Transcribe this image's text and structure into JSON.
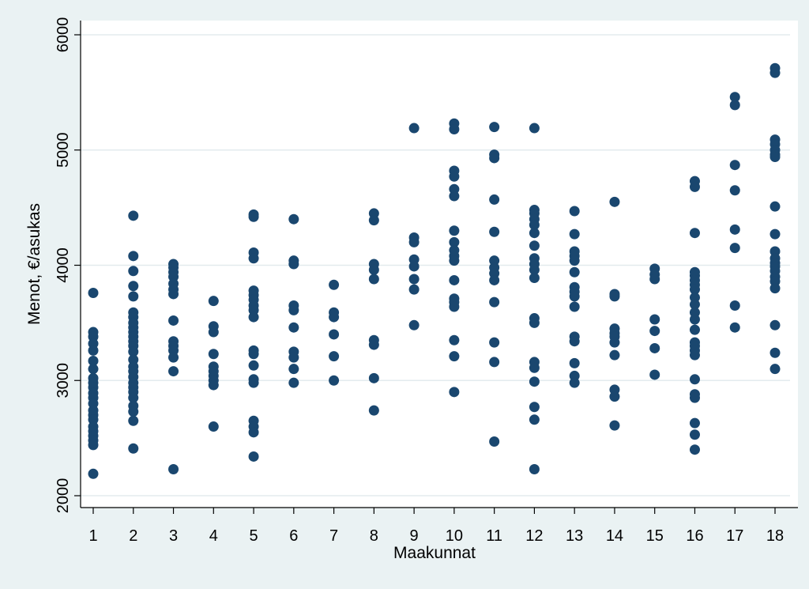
{
  "colors": {
    "background": "#eaf2f3",
    "plot_bg": "#ffffff",
    "points": "#1a476f",
    "grid": "#e3ebee"
  },
  "chart_data": {
    "type": "scatter",
    "title": "",
    "xlabel": "Maakunnat",
    "ylabel": "Menot, €/asukas",
    "xlim": [
      1,
      18
    ],
    "ylim": [
      2000,
      6000
    ],
    "xticks": [
      1,
      2,
      3,
      4,
      5,
      6,
      7,
      8,
      9,
      10,
      11,
      12,
      13,
      14,
      15,
      16,
      17,
      18
    ],
    "yticks": [
      2000,
      3000,
      4000,
      5000,
      6000
    ],
    "grid": true,
    "legend": "none",
    "points": [
      [
        1,
        3760
      ],
      [
        1,
        3420
      ],
      [
        1,
        3380
      ],
      [
        1,
        3320
      ],
      [
        1,
        3260
      ],
      [
        1,
        3170
      ],
      [
        1,
        3100
      ],
      [
        1,
        3020
      ],
      [
        1,
        2980
      ],
      [
        1,
        2940
      ],
      [
        1,
        2890
      ],
      [
        1,
        2850
      ],
      [
        1,
        2800
      ],
      [
        1,
        2740
      ],
      [
        1,
        2700
      ],
      [
        1,
        2660
      ],
      [
        1,
        2600
      ],
      [
        1,
        2560
      ],
      [
        1,
        2520
      ],
      [
        1,
        2480
      ],
      [
        1,
        2440
      ],
      [
        1,
        2190
      ],
      [
        2,
        4430
      ],
      [
        2,
        4080
      ],
      [
        2,
        3950
      ],
      [
        2,
        3820
      ],
      [
        2,
        3730
      ],
      [
        2,
        3590
      ],
      [
        2,
        3550
      ],
      [
        2,
        3500
      ],
      [
        2,
        3460
      ],
      [
        2,
        3420
      ],
      [
        2,
        3380
      ],
      [
        2,
        3340
      ],
      [
        2,
        3300
      ],
      [
        2,
        3250
      ],
      [
        2,
        3180
      ],
      [
        2,
        3120
      ],
      [
        2,
        3080
      ],
      [
        2,
        3030
      ],
      [
        2,
        2980
      ],
      [
        2,
        2940
      ],
      [
        2,
        2900
      ],
      [
        2,
        2850
      ],
      [
        2,
        2780
      ],
      [
        2,
        2730
      ],
      [
        2,
        2650
      ],
      [
        2,
        2410
      ],
      [
        3,
        4010
      ],
      [
        3,
        3980
      ],
      [
        3,
        3940
      ],
      [
        3,
        3900
      ],
      [
        3,
        3840
      ],
      [
        3,
        3790
      ],
      [
        3,
        3750
      ],
      [
        3,
        3520
      ],
      [
        3,
        3340
      ],
      [
        3,
        3300
      ],
      [
        3,
        3260
      ],
      [
        3,
        3200
      ],
      [
        3,
        3080
      ],
      [
        3,
        2230
      ],
      [
        4,
        3690
      ],
      [
        4,
        3470
      ],
      [
        4,
        3420
      ],
      [
        4,
        3230
      ],
      [
        4,
        3120
      ],
      [
        4,
        3080
      ],
      [
        4,
        3040
      ],
      [
        4,
        3000
      ],
      [
        4,
        2960
      ],
      [
        4,
        2600
      ],
      [
        5,
        4440
      ],
      [
        5,
        4420
      ],
      [
        5,
        4110
      ],
      [
        5,
        4060
      ],
      [
        5,
        3780
      ],
      [
        5,
        3740
      ],
      [
        5,
        3700
      ],
      [
        5,
        3650
      ],
      [
        5,
        3610
      ],
      [
        5,
        3550
      ],
      [
        5,
        3260
      ],
      [
        5,
        3230
      ],
      [
        5,
        3130
      ],
      [
        5,
        3010
      ],
      [
        5,
        2980
      ],
      [
        5,
        2650
      ],
      [
        5,
        2600
      ],
      [
        5,
        2550
      ],
      [
        5,
        2340
      ],
      [
        6,
        4400
      ],
      [
        6,
        4040
      ],
      [
        6,
        4010
      ],
      [
        6,
        3650
      ],
      [
        6,
        3610
      ],
      [
        6,
        3460
      ],
      [
        6,
        3250
      ],
      [
        6,
        3200
      ],
      [
        6,
        3100
      ],
      [
        6,
        2980
      ],
      [
        7,
        3830
      ],
      [
        7,
        3590
      ],
      [
        7,
        3550
      ],
      [
        7,
        3400
      ],
      [
        7,
        3210
      ],
      [
        7,
        3000
      ],
      [
        8,
        4450
      ],
      [
        8,
        4390
      ],
      [
        8,
        4010
      ],
      [
        8,
        3960
      ],
      [
        8,
        3880
      ],
      [
        8,
        3350
      ],
      [
        8,
        3310
      ],
      [
        8,
        3020
      ],
      [
        8,
        2740
      ],
      [
        9,
        5190
      ],
      [
        9,
        4240
      ],
      [
        9,
        4200
      ],
      [
        9,
        4050
      ],
      [
        9,
        3990
      ],
      [
        9,
        3880
      ],
      [
        9,
        3790
      ],
      [
        9,
        3480
      ],
      [
        10,
        5230
      ],
      [
        10,
        5180
      ],
      [
        10,
        4820
      ],
      [
        10,
        4770
      ],
      [
        10,
        4660
      ],
      [
        10,
        4600
      ],
      [
        10,
        4300
      ],
      [
        10,
        4200
      ],
      [
        10,
        4130
      ],
      [
        10,
        4080
      ],
      [
        10,
        4040
      ],
      [
        10,
        3870
      ],
      [
        10,
        3710
      ],
      [
        10,
        3680
      ],
      [
        10,
        3640
      ],
      [
        10,
        3350
      ],
      [
        10,
        3210
      ],
      [
        10,
        2900
      ],
      [
        11,
        5200
      ],
      [
        11,
        4960
      ],
      [
        11,
        4930
      ],
      [
        11,
        4570
      ],
      [
        11,
        4290
      ],
      [
        11,
        4040
      ],
      [
        11,
        3980
      ],
      [
        11,
        3930
      ],
      [
        11,
        3870
      ],
      [
        11,
        3680
      ],
      [
        11,
        3330
      ],
      [
        11,
        3160
      ],
      [
        11,
        2470
      ],
      [
        12,
        5190
      ],
      [
        12,
        4480
      ],
      [
        12,
        4450
      ],
      [
        12,
        4400
      ],
      [
        12,
        4350
      ],
      [
        12,
        4280
      ],
      [
        12,
        4170
      ],
      [
        12,
        4060
      ],
      [
        12,
        4010
      ],
      [
        12,
        3960
      ],
      [
        12,
        3890
      ],
      [
        12,
        3540
      ],
      [
        12,
        3500
      ],
      [
        12,
        3160
      ],
      [
        12,
        3110
      ],
      [
        12,
        2990
      ],
      [
        12,
        2770
      ],
      [
        12,
        2660
      ],
      [
        12,
        2230
      ],
      [
        13,
        4470
      ],
      [
        13,
        4270
      ],
      [
        13,
        4120
      ],
      [
        13,
        4080
      ],
      [
        13,
        4040
      ],
      [
        13,
        3940
      ],
      [
        13,
        3810
      ],
      [
        13,
        3770
      ],
      [
        13,
        3730
      ],
      [
        13,
        3640
      ],
      [
        13,
        3380
      ],
      [
        13,
        3340
      ],
      [
        13,
        3150
      ],
      [
        13,
        3040
      ],
      [
        13,
        2980
      ],
      [
        14,
        4550
      ],
      [
        14,
        3750
      ],
      [
        14,
        3730
      ],
      [
        14,
        3450
      ],
      [
        14,
        3410
      ],
      [
        14,
        3380
      ],
      [
        14,
        3330
      ],
      [
        14,
        3220
      ],
      [
        14,
        2920
      ],
      [
        14,
        2860
      ],
      [
        14,
        2610
      ],
      [
        15,
        3970
      ],
      [
        15,
        3920
      ],
      [
        15,
        3880
      ],
      [
        15,
        3530
      ],
      [
        15,
        3430
      ],
      [
        15,
        3280
      ],
      [
        15,
        3050
      ],
      [
        16,
        4730
      ],
      [
        16,
        4680
      ],
      [
        16,
        4280
      ],
      [
        16,
        3940
      ],
      [
        16,
        3910
      ],
      [
        16,
        3870
      ],
      [
        16,
        3830
      ],
      [
        16,
        3790
      ],
      [
        16,
        3720
      ],
      [
        16,
        3660
      ],
      [
        16,
        3590
      ],
      [
        16,
        3530
      ],
      [
        16,
        3440
      ],
      [
        16,
        3330
      ],
      [
        16,
        3300
      ],
      [
        16,
        3260
      ],
      [
        16,
        3220
      ],
      [
        16,
        3010
      ],
      [
        16,
        2880
      ],
      [
        16,
        2850
      ],
      [
        16,
        2630
      ],
      [
        16,
        2530
      ],
      [
        16,
        2400
      ],
      [
        17,
        5460
      ],
      [
        17,
        5390
      ],
      [
        17,
        4870
      ],
      [
        17,
        4650
      ],
      [
        17,
        4310
      ],
      [
        17,
        4150
      ],
      [
        17,
        3650
      ],
      [
        17,
        3460
      ],
      [
        18,
        5710
      ],
      [
        18,
        5670
      ],
      [
        18,
        5090
      ],
      [
        18,
        5050
      ],
      [
        18,
        5000
      ],
      [
        18,
        4960
      ],
      [
        18,
        4940
      ],
      [
        18,
        4510
      ],
      [
        18,
        4270
      ],
      [
        18,
        4120
      ],
      [
        18,
        4060
      ],
      [
        18,
        4020
      ],
      [
        18,
        3990
      ],
      [
        18,
        3950
      ],
      [
        18,
        3900
      ],
      [
        18,
        3860
      ],
      [
        18,
        3800
      ],
      [
        18,
        3480
      ],
      [
        18,
        3240
      ],
      [
        18,
        3100
      ]
    ]
  }
}
